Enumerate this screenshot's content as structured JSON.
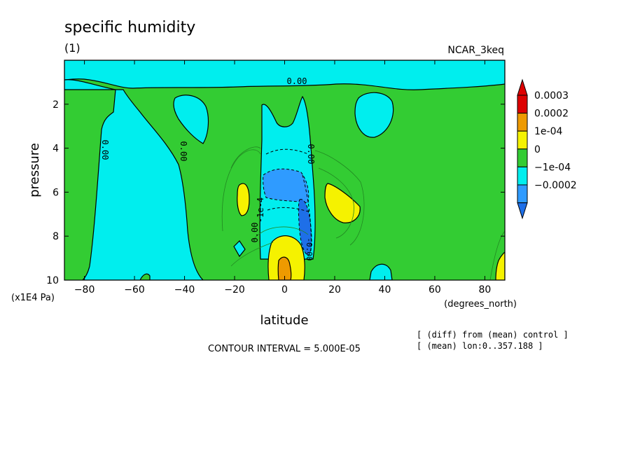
{
  "chart_data": {
    "type": "contour",
    "title": "specific humidity",
    "subtitle": "(1)",
    "dataset_label": "NCAR_3keq",
    "xlabel": "latitude",
    "x_units": "(degrees_north)",
    "ylabel": "pressure",
    "y_units": "(x1E4 Pa)",
    "xlim": [
      -88,
      88
    ],
    "ylim": [
      10,
      0
    ],
    "x_ticks": [
      -80,
      -60,
      -40,
      -20,
      0,
      20,
      40,
      60,
      80
    ],
    "x_tick_labels": [
      "−80",
      "−60",
      "−40",
      "−20",
      "0",
      "20",
      "40",
      "60",
      "80"
    ],
    "y_ticks": [
      2,
      4,
      6,
      8,
      10
    ],
    "y_tick_labels": [
      "2",
      "4",
      "6",
      "8",
      "10"
    ],
    "contour_interval_text": "CONTOUR INTERVAL = 5.000E-05",
    "notes": [
      "[ (diff) from (mean) control ]",
      "[ (mean) lon:0..357.188 ]"
    ],
    "contour_labels": [
      "0.00",
      "0.00",
      "0.00",
      "0.00",
      "0.00",
      "-1e-4",
      "-0.00"
    ],
    "colorbar": {
      "levels": [
        {
          "label": "0.0003",
          "color": "#dd0000"
        },
        {
          "label": "0.0002",
          "color": "#ee9a00"
        },
        {
          "label": "1e-04",
          "color": "#f5f200"
        },
        {
          "label": "0",
          "color": "#33cc33"
        },
        {
          "label": "−1e-04",
          "color": "#00eeee"
        },
        {
          "label": "−0.0002",
          "color": "#2f9bff"
        }
      ],
      "top_triangle_color": "#dd0000",
      "bottom_triangle_color": "#1e6fe8"
    },
    "colors": {
      "background_field": "#33cc33",
      "negative_1": "#00eeee",
      "negative_2": "#2f9bff",
      "negative_3": "#1e6fe8",
      "positive_1": "#f5f200",
      "positive_2": "#ee9a00"
    }
  }
}
